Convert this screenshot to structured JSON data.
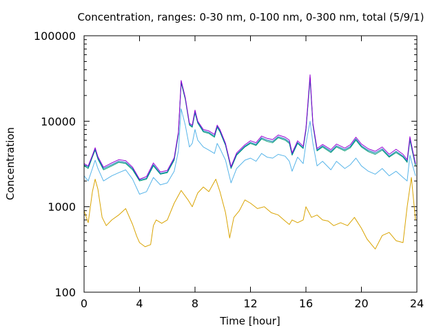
{
  "chart_data": {
    "type": "line",
    "title": "Concentration, ranges: 0-30 nm, 0-100 nm, 0-300 nm, total (5/9/1)",
    "xlabel": "Time [hour]",
    "ylabel": "Concentration",
    "xlim": [
      0,
      24
    ],
    "ylim": [
      100,
      100000
    ],
    "yscale": "log",
    "grid": false,
    "legend": "none",
    "x_ticks": [
      0,
      4,
      8,
      12,
      16,
      20,
      24
    ],
    "x_tick_labels": [
      "0",
      "4",
      "8",
      "12",
      "16",
      "20",
      "24"
    ],
    "y_ticks": [
      100,
      1000,
      10000,
      100000
    ],
    "y_tick_labels": [
      "100",
      "1000",
      "10000",
      "100000"
    ],
    "series": [
      {
        "color": "#d9a300",
        "x": [
          0,
          0.3,
          0.6,
          0.8,
          1.0,
          1.3,
          1.6,
          2.0,
          2.5,
          3.0,
          3.5,
          3.8,
          4.0,
          4.4,
          4.8,
          5.0,
          5.2,
          5.6,
          6.0,
          6.5,
          7.0,
          7.5,
          7.8,
          8.2,
          8.6,
          9.0,
          9.5,
          9.8,
          10.2,
          10.5,
          10.8,
          11.2,
          11.6,
          12.0,
          12.5,
          13.0,
          13.5,
          14.0,
          14.5,
          14.8,
          15.0,
          15.4,
          15.8,
          16.0,
          16.4,
          16.8,
          17.2,
          17.6,
          18.0,
          18.5,
          19.0,
          19.5,
          20.0,
          20.4,
          20.8,
          21.0,
          21.5,
          22.0,
          22.5,
          23.0,
          23.3,
          23.6,
          23.9
        ],
        "values": [
          900,
          650,
          1500,
          2100,
          1600,
          750,
          600,
          700,
          800,
          950,
          620,
          450,
          380,
          340,
          360,
          600,
          700,
          640,
          700,
          1100,
          1550,
          1200,
          1000,
          1450,
          1700,
          1500,
          2100,
          1500,
          850,
          430,
          750,
          900,
          1200,
          1100,
          950,
          1000,
          850,
          800,
          680,
          620,
          700,
          650,
          700,
          1000,
          750,
          800,
          700,
          680,
          600,
          650,
          600,
          750,
          560,
          420,
          350,
          320,
          460,
          500,
          400,
          380,
          1000,
          2200,
          700
        ]
      },
      {
        "color": "#56b4e9",
        "x": [
          0,
          0.3,
          0.6,
          0.8,
          1.0,
          1.4,
          2.0,
          2.5,
          3.0,
          3.5,
          4.0,
          4.5,
          5.0,
          5.5,
          6.0,
          6.5,
          6.8,
          7.0,
          7.3,
          7.6,
          7.8,
          8.0,
          8.2,
          8.6,
          9.0,
          9.4,
          9.6,
          9.8,
          10.2,
          10.6,
          11.0,
          11.6,
          12.0,
          12.4,
          12.8,
          13.2,
          13.6,
          14.0,
          14.5,
          14.8,
          15.0,
          15.4,
          15.8,
          16.0,
          16.3,
          16.5,
          16.8,
          17.2,
          17.8,
          18.2,
          18.8,
          19.2,
          19.6,
          20.0,
          20.5,
          21.0,
          21.5,
          22.0,
          22.5,
          23.0,
          23.3,
          23.5,
          23.7,
          23.9
        ],
        "values": [
          2300,
          2000,
          2800,
          3500,
          2800,
          2000,
          2300,
          2500,
          2700,
          2100,
          1400,
          1500,
          2200,
          1800,
          1900,
          2600,
          4500,
          14000,
          9000,
          5000,
          5500,
          8000,
          6000,
          5000,
          4600,
          4200,
          5500,
          4800,
          3500,
          1900,
          2800,
          3500,
          3700,
          3400,
          4200,
          3800,
          3700,
          4100,
          3900,
          3400,
          2600,
          3800,
          3200,
          5500,
          10000,
          5500,
          3000,
          3400,
          2700,
          3400,
          2800,
          3100,
          3700,
          3000,
          2600,
          2400,
          2800,
          2300,
          2600,
          2200,
          2000,
          4000,
          3000,
          2300
        ]
      },
      {
        "color": "#009e73",
        "x": [
          0,
          0.3,
          0.6,
          0.8,
          1.0,
          1.4,
          2.0,
          2.5,
          3.0,
          3.5,
          4.0,
          4.5,
          5.0,
          5.5,
          6.0,
          6.5,
          6.8,
          7.0,
          7.3,
          7.6,
          7.8,
          8.0,
          8.2,
          8.6,
          9.0,
          9.4,
          9.6,
          9.8,
          10.2,
          10.6,
          11.0,
          11.6,
          12.0,
          12.4,
          12.8,
          13.2,
          13.6,
          14.0,
          14.5,
          14.8,
          15.0,
          15.4,
          15.8,
          16.0,
          16.3,
          16.5,
          16.8,
          17.2,
          17.8,
          18.2,
          18.8,
          19.2,
          19.6,
          20.0,
          20.5,
          21.0,
          21.5,
          22.0,
          22.5,
          23.0,
          23.3,
          23.5,
          23.7,
          23.9
        ],
        "values": [
          3000,
          2800,
          3800,
          4600,
          3600,
          2700,
          3000,
          3300,
          3200,
          2700,
          2000,
          2100,
          3000,
          2400,
          2500,
          3500,
          7000,
          28000,
          18000,
          9000,
          8500,
          12500,
          9500,
          7500,
          7200,
          6500,
          8500,
          7500,
          5200,
          2800,
          4000,
          5000,
          5500,
          5200,
          6200,
          5800,
          5600,
          6400,
          6000,
          5500,
          4000,
          5500,
          4800,
          7800,
          31000,
          9000,
          4500,
          5000,
          4300,
          5000,
          4500,
          4900,
          6000,
          5000,
          4400,
          4100,
          4600,
          3800,
          4300,
          3800,
          3300,
          6000,
          4200,
          3000
        ]
      },
      {
        "color": "#0072b2",
        "x": [
          0,
          0.3,
          0.6,
          0.8,
          1.0,
          1.4,
          2.0,
          2.5,
          3.0,
          3.5,
          4.0,
          4.5,
          5.0,
          5.5,
          6.0,
          6.5,
          6.8,
          7.0,
          7.3,
          7.6,
          7.8,
          8.0,
          8.2,
          8.6,
          9.0,
          9.4,
          9.6,
          9.8,
          10.2,
          10.6,
          11.0,
          11.6,
          12.0,
          12.4,
          12.8,
          13.2,
          13.6,
          14.0,
          14.5,
          14.8,
          15.0,
          15.4,
          15.8,
          16.0,
          16.3,
          16.5,
          16.8,
          17.2,
          17.8,
          18.2,
          18.8,
          19.2,
          19.6,
          20.0,
          20.5,
          21.0,
          21.5,
          22.0,
          22.5,
          23.0,
          23.3,
          23.5,
          23.7,
          23.9
        ],
        "values": [
          3100,
          2900,
          3900,
          4700,
          3700,
          2800,
          3100,
          3400,
          3300,
          2800,
          2050,
          2150,
          3100,
          2450,
          2550,
          3600,
          7200,
          29000,
          18500,
          9200,
          8700,
          12800,
          9700,
          7700,
          7400,
          6700,
          8700,
          7700,
          5300,
          2850,
          4100,
          5100,
          5650,
          5350,
          6400,
          6000,
          5800,
          6600,
          6200,
          5700,
          4100,
          5650,
          4900,
          8000,
          33000,
          9200,
          4600,
          5150,
          4450,
          5150,
          4650,
          5050,
          6200,
          5150,
          4550,
          4250,
          4750,
          3900,
          4450,
          3900,
          3400,
          6300,
          4350,
          3100
        ]
      },
      {
        "color": "#9400d3",
        "x": [
          0,
          0.3,
          0.6,
          0.8,
          1.0,
          1.4,
          2.0,
          2.5,
          3.0,
          3.5,
          4.0,
          4.5,
          5.0,
          5.5,
          6.0,
          6.5,
          6.8,
          7.0,
          7.3,
          7.6,
          7.8,
          8.0,
          8.2,
          8.6,
          9.0,
          9.4,
          9.6,
          9.8,
          10.2,
          10.6,
          11.0,
          11.6,
          12.0,
          12.4,
          12.8,
          13.2,
          13.6,
          14.0,
          14.5,
          14.8,
          15.0,
          15.4,
          15.8,
          16.0,
          16.3,
          16.5,
          16.8,
          17.2,
          17.8,
          18.2,
          18.8,
          19.2,
          19.6,
          20.0,
          20.5,
          21.0,
          21.5,
          22.0,
          22.5,
          23.0,
          23.3,
          23.5,
          23.7,
          23.9
        ],
        "values": [
          3200,
          3000,
          4000,
          4900,
          3850,
          2900,
          3250,
          3550,
          3450,
          2900,
          2100,
          2250,
          3250,
          2550,
          2650,
          3750,
          7500,
          30000,
          19000,
          9500,
          9000,
          13500,
          10000,
          8000,
          7700,
          7000,
          9000,
          8000,
          5500,
          2950,
          4250,
          5300,
          5900,
          5600,
          6700,
          6300,
          6100,
          6900,
          6500,
          6000,
          4250,
          5900,
          5100,
          8300,
          35000,
          9500,
          4800,
          5350,
          4650,
          5400,
          4850,
          5300,
          6500,
          5400,
          4750,
          4450,
          5000,
          4100,
          4700,
          4100,
          3550,
          6600,
          4500,
          3200
        ]
      }
    ]
  }
}
